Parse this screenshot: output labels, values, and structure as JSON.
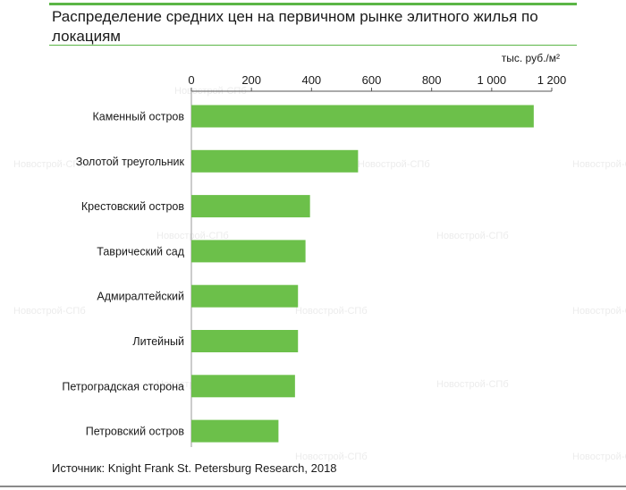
{
  "title": "Распределение средних цен на первичном рынке элитного жилья по локациям",
  "source": "Источник: Knight Frank St. Petersburg Research, 2018",
  "watermark": "Новострой-СПб",
  "colors": {
    "bar": "#6cc04a",
    "accent_rule": "#5bb646",
    "axis": "#555555"
  },
  "chart_data": {
    "type": "bar",
    "orientation": "horizontal",
    "unit_label": "тыс. руб./м²",
    "xlim": [
      0,
      1200
    ],
    "ticks": [
      0,
      200,
      400,
      600,
      800,
      1000,
      1200
    ],
    "tick_labels": [
      "0",
      "200",
      "400",
      "600",
      "800",
      "1 000",
      "1 200"
    ],
    "categories": [
      "Каменный остров",
      "Золотой треугольник",
      "Крестовский остров",
      "Таврический сад",
      "Адмиралтейский",
      "Литейный",
      "Петроградская сторона",
      "Петровский остров"
    ],
    "values": [
      1140,
      555,
      395,
      380,
      355,
      355,
      345,
      290
    ],
    "grid": false,
    "legend": "none"
  }
}
